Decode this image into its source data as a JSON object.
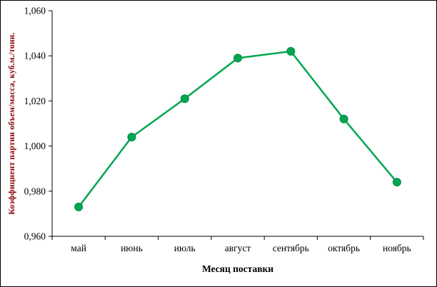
{
  "chart_data": {
    "type": "line",
    "title": "",
    "categories": [
      "май",
      "июнь",
      "июль",
      "август",
      "сентябрь",
      "октябрь",
      "ноябрь"
    ],
    "values": [
      0.973,
      1.004,
      1.021,
      1.039,
      1.042,
      1.012,
      0.984
    ],
    "series_name": "Коэффициент партии объем/масса",
    "xlabel": "Месяц поставки",
    "ylabel": "Коэффициент партии объем/масса, куб.м./тонн.",
    "ylim": [
      0.96,
      1.06
    ],
    "y_ticks": [
      0.96,
      0.98,
      1.0,
      1.02,
      1.04,
      1.06
    ],
    "y_tick_labels": [
      "0,960",
      "0,980",
      "1,000",
      "1,020",
      "1,040",
      "1,060"
    ],
    "grid": false,
    "legend": "none",
    "line_color": "#00a651",
    "marker_color": "#00a651",
    "marker_edge_color": "#008a43",
    "axis_color": "#000000",
    "ylabel_color": "#8b0000"
  }
}
